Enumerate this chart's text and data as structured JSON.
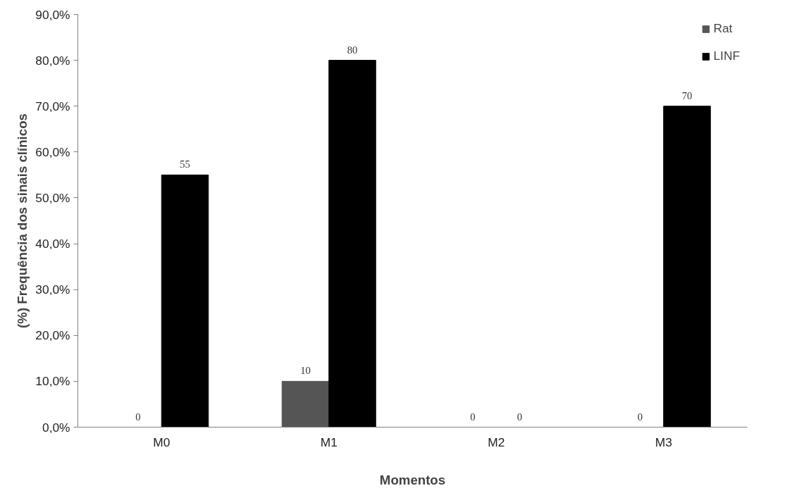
{
  "chart_data": {
    "type": "bar",
    "xlabel": "Momentos",
    "ylabel": "(%) Frequência dos sinais clínicos",
    "categories": [
      "M0",
      "M1",
      "M2",
      "M3"
    ],
    "series": [
      {
        "name": "Rat",
        "color": "#555555",
        "values": [
          0,
          10,
          0,
          0
        ]
      },
      {
        "name": "LINF",
        "color": "#000000",
        "values": [
          55,
          80,
          0,
          70
        ]
      }
    ],
    "ylim": [
      0,
      90
    ],
    "yticks": [
      {
        "value": 0,
        "label": "0,0%"
      },
      {
        "value": 10,
        "label": "10,0%"
      },
      {
        "value": 20,
        "label": "20,0%"
      },
      {
        "value": 30,
        "label": "30,0%"
      },
      {
        "value": 40,
        "label": "40,0%"
      },
      {
        "value": 50,
        "label": "50,0%"
      },
      {
        "value": 60,
        "label": "60,0%"
      },
      {
        "value": 70,
        "label": "70,0%"
      },
      {
        "value": 80,
        "label": "80,0%"
      },
      {
        "value": 90,
        "label": "90,0%"
      }
    ],
    "data_labels": true,
    "legend": "top right",
    "grid": false
  }
}
